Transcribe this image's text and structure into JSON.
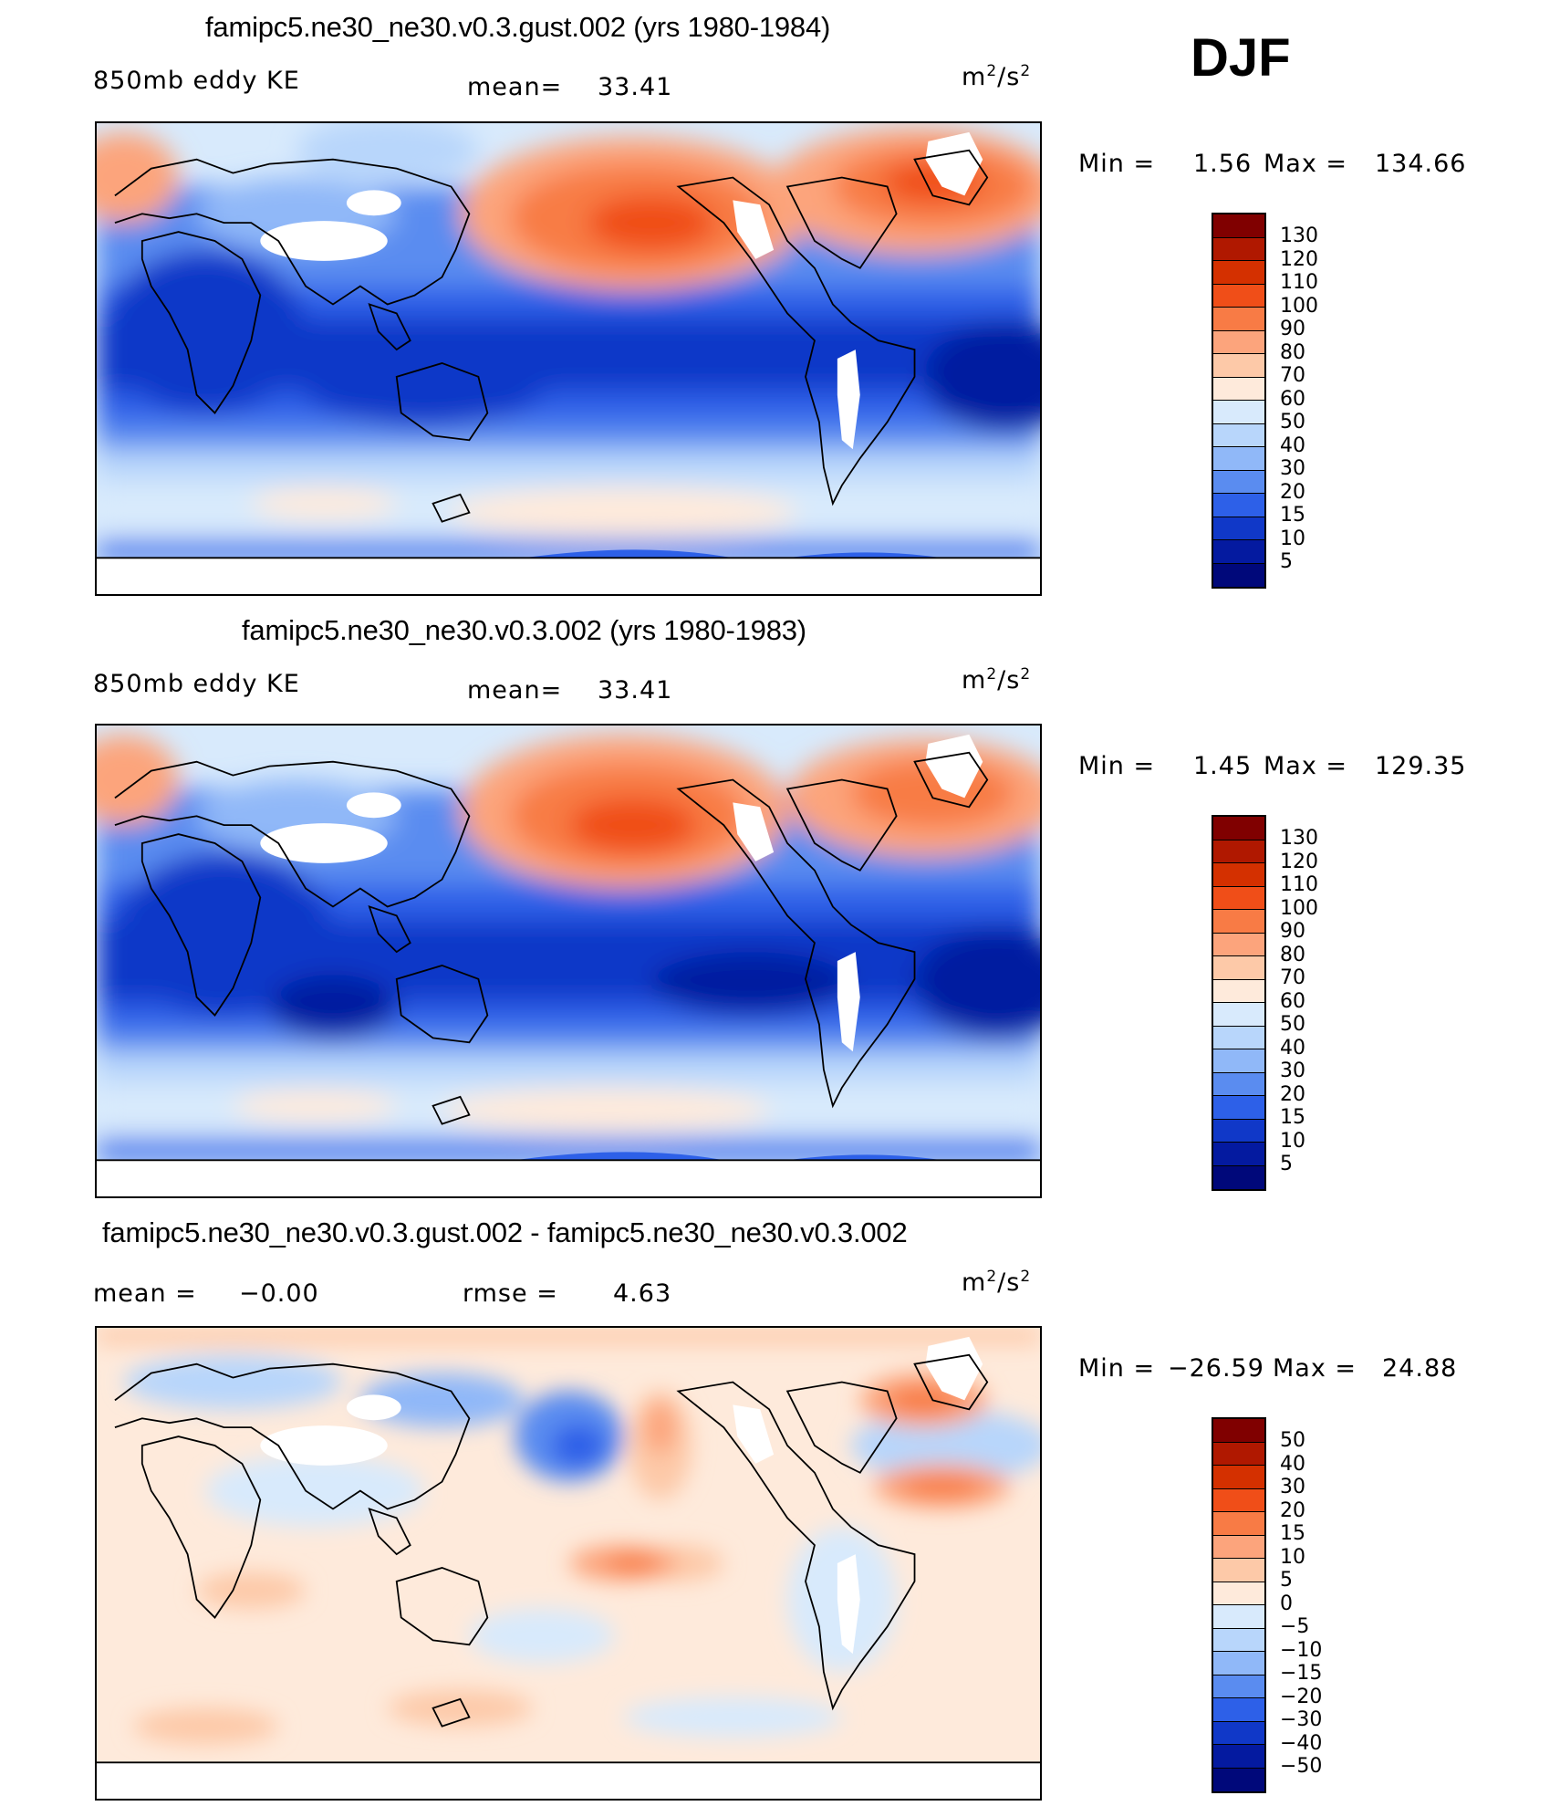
{
  "season": "DJF",
  "panels": [
    {
      "title": "famipc5.ne30_ne30.v0.3.gust.002 (yrs 1980-1984)",
      "left_label": "850mb  eddy  KE",
      "mid_label": "mean=",
      "mid_value": "33.41",
      "unit_base": "m",
      "unit_exp": "2",
      "unit_mid": "/s",
      "unit_exp2": "2",
      "min_label": "Min  =",
      "min_value": "1.56",
      "max_label": "Max  =",
      "max_value": "134.66",
      "levels": [
        "130",
        "120",
        "110",
        "100",
        "90",
        "80",
        "70",
        "60",
        "50",
        "40",
        "30",
        "20",
        "15",
        "10",
        "5"
      ],
      "colors": [
        "#800000",
        "#b01800",
        "#d43000",
        "#f04e18",
        "#f87b45",
        "#fca47c",
        "#fdc9a8",
        "#feeadb",
        "#d8eafc",
        "#b8d6fb",
        "#90b8f8",
        "#5a8cf0",
        "#2d60e8",
        "#1038c8",
        "#041aa0",
        "#00087a"
      ]
    },
    {
      "title": "famipc5.ne30_ne30.v0.3.002 (yrs 1980-1983)",
      "left_label": "850mb  eddy  KE",
      "mid_label": "mean=",
      "mid_value": "33.41",
      "unit_base": "m",
      "unit_exp": "2",
      "unit_mid": "/s",
      "unit_exp2": "2",
      "min_label": "Min  =",
      "min_value": "1.45",
      "max_label": "Max  =",
      "max_value": "129.35",
      "levels": [
        "130",
        "120",
        "110",
        "100",
        "90",
        "80",
        "70",
        "60",
        "50",
        "40",
        "30",
        "20",
        "15",
        "10",
        "5"
      ],
      "colors": [
        "#800000",
        "#b01800",
        "#d43000",
        "#f04e18",
        "#f87b45",
        "#fca47c",
        "#fdc9a8",
        "#feeadb",
        "#d8eafc",
        "#b8d6fb",
        "#90b8f8",
        "#5a8cf0",
        "#2d60e8",
        "#1038c8",
        "#041aa0",
        "#00087a"
      ]
    },
    {
      "title": "famipc5.ne30_ne30.v0.3.gust.002 - famipc5.ne30_ne30.v0.3.002",
      "left_label": "mean  =",
      "left_value": "−0.00",
      "mid_label": "rmse  =",
      "mid_value": "4.63",
      "unit_base": "m",
      "unit_exp": "2",
      "unit_mid": "/s",
      "unit_exp2": "2",
      "min_label": "Min  =",
      "min_value": "−26.59",
      "max_label": "Max  =",
      "max_value": "24.88",
      "levels": [
        "50",
        "40",
        "30",
        "20",
        "15",
        "10",
        "5",
        "0",
        "−5",
        "−10",
        "−15",
        "−20",
        "−30",
        "−40",
        "−50"
      ],
      "colors": [
        "#800000",
        "#b01800",
        "#d43000",
        "#f04e18",
        "#f87b45",
        "#fca47c",
        "#fdc9a8",
        "#feeadb",
        "#d8eafc",
        "#b8d6fb",
        "#90b8f8",
        "#5a8cf0",
        "#2d60e8",
        "#1038c8",
        "#041aa0",
        "#00087a"
      ]
    }
  ]
}
